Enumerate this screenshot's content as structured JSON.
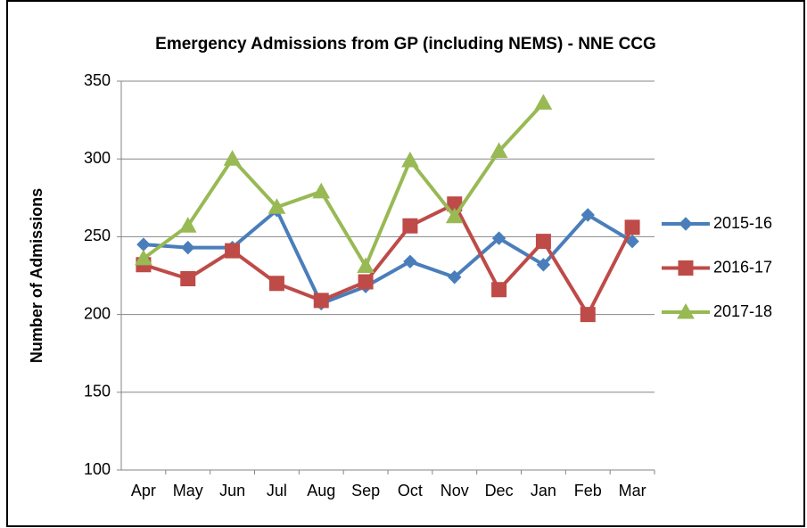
{
  "chart_data": {
    "type": "line",
    "title": "Emergency Admissions from GP (including NEMS) - NNE CCG",
    "y_label": "Number of Admissions",
    "categories": [
      "Apr",
      "May",
      "Jun",
      "Jul",
      "Aug",
      "Sep",
      "Oct",
      "Nov",
      "Dec",
      "Jan",
      "Feb",
      "Mar"
    ],
    "series": [
      {
        "name": "2015-16",
        "color": "#4a7ebb",
        "marker": "diamond",
        "values": [
          245,
          243,
          243,
          267,
          207,
          218,
          234,
          224,
          249,
          232,
          264,
          247
        ]
      },
      {
        "name": "2016-17",
        "color": "#be4b48",
        "marker": "square",
        "values": [
          232,
          223,
          241,
          220,
          209,
          221,
          257,
          271,
          216,
          247,
          200,
          256
        ]
      },
      {
        "name": "2017-18",
        "color": "#98b954",
        "marker": "triangle",
        "values": [
          236,
          257,
          300,
          269,
          279,
          231,
          299,
          263,
          305,
          336,
          null,
          null
        ]
      }
    ],
    "ylim": [
      100,
      350
    ],
    "yticks": [
      100,
      150,
      200,
      250,
      300,
      350
    ],
    "grid": true,
    "legend": "right"
  }
}
